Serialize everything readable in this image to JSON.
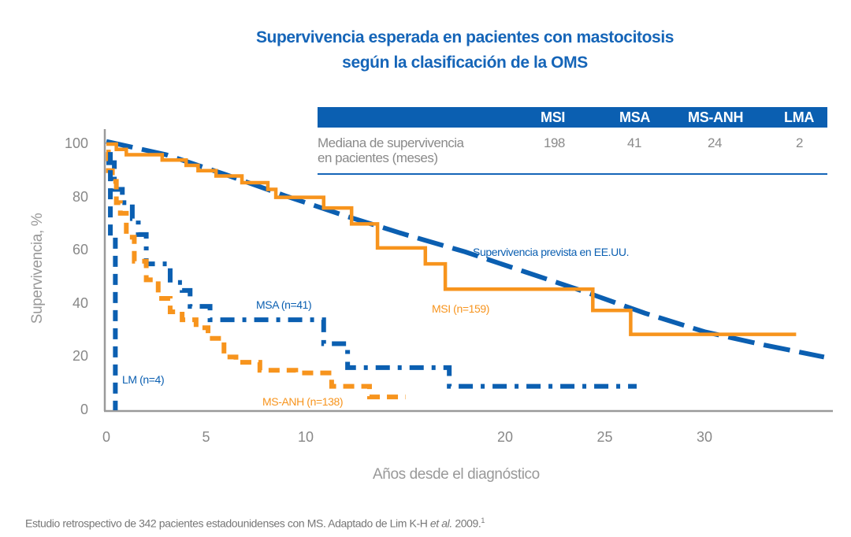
{
  "colors": {
    "blue": "#0b5fb1",
    "orange": "#f7941d",
    "axis": "#9a9a9a"
  },
  "chart_data": {
    "type": "line",
    "title": [
      "Supervivencia esperada en pacientes con mastocitosis",
      "según la clasificación de la OMS"
    ],
    "xlabel": "Años desde el diagnóstico",
    "ylabel": "Supervivencia, %",
    "xlim": [
      0,
      36.5
    ],
    "ylim": [
      0,
      100
    ],
    "xticks": [
      0,
      5,
      10,
      20,
      25,
      30
    ],
    "yticks": [
      0,
      20,
      40,
      60,
      80,
      100
    ],
    "series": [
      {
        "name": "Supervivencia prevista en EE.UU.",
        "color": "#0b5fb1",
        "style": "longdash",
        "step": false,
        "points": [
          [
            0,
            101
          ],
          [
            3,
            96
          ],
          [
            6,
            88.5
          ],
          [
            9,
            80.5
          ],
          [
            12,
            73
          ],
          [
            15,
            66
          ],
          [
            18,
            59.5
          ],
          [
            21,
            52
          ],
          [
            24,
            44.5
          ],
          [
            27,
            36.5
          ],
          [
            30,
            29.5
          ],
          [
            33,
            24.5
          ],
          [
            36,
            20
          ]
        ]
      },
      {
        "name": "MSI (n=159)",
        "color": "#f7941d",
        "style": "solid",
        "step": true,
        "points": [
          [
            0,
            100
          ],
          [
            0.5,
            98
          ],
          [
            1.0,
            96
          ],
          [
            2.8,
            94
          ],
          [
            4,
            92
          ],
          [
            4.6,
            90
          ],
          [
            5.5,
            88
          ],
          [
            6.8,
            85.5
          ],
          [
            8.1,
            83
          ],
          [
            8.5,
            80
          ],
          [
            10.9,
            76
          ],
          [
            12.3,
            70
          ],
          [
            13.6,
            61
          ],
          [
            16,
            55
          ],
          [
            17,
            45.5
          ],
          [
            24.4,
            37.5
          ],
          [
            26.3,
            28.5
          ],
          [
            34.6,
            28.5
          ]
        ]
      },
      {
        "name": "MSA (n=41)",
        "color": "#0b5fb1",
        "style": "dashdot",
        "step": true,
        "points": [
          [
            0,
            93
          ],
          [
            0.4,
            83
          ],
          [
            0.8,
            78
          ],
          [
            1.3,
            72
          ],
          [
            1.6,
            66
          ],
          [
            2.0,
            55
          ],
          [
            3.2,
            48
          ],
          [
            3.8,
            45
          ],
          [
            4.2,
            39
          ],
          [
            5.2,
            34
          ],
          [
            10.9,
            25
          ],
          [
            12.1,
            16
          ],
          [
            17.2,
            9
          ],
          [
            26.6,
            9
          ]
        ]
      },
      {
        "name": "MS-ANH (n=138)",
        "color": "#f7941d",
        "style": "dash",
        "step": true,
        "points": [
          [
            0,
            97
          ],
          [
            0.1,
            90
          ],
          [
            0.3,
            86
          ],
          [
            0.5,
            78
          ],
          [
            0.7,
            74
          ],
          [
            1.0,
            65
          ],
          [
            1.4,
            56
          ],
          [
            2.0,
            49
          ],
          [
            2.6,
            42
          ],
          [
            3.2,
            37
          ],
          [
            3.8,
            34
          ],
          [
            4.5,
            31
          ],
          [
            5.1,
            27
          ],
          [
            5.9,
            20
          ],
          [
            6.5,
            18
          ],
          [
            7.7,
            15
          ],
          [
            9.5,
            14
          ],
          [
            11.3,
            9
          ],
          [
            13.2,
            5
          ],
          [
            15,
            5
          ]
        ]
      },
      {
        "name": "LM (n=4)",
        "color": "#0b5fb1",
        "style": "dash",
        "step": true,
        "points": [
          [
            0.2,
            97
          ],
          [
            0.2,
            65
          ],
          [
            0.45,
            35
          ],
          [
            0.45,
            0
          ]
        ]
      }
    ]
  },
  "table": {
    "headers": [
      "MSI",
      "MSA",
      "MS-ANH",
      "LMA"
    ],
    "row_label_1": "Mediana de supervivencia",
    "row_label_2": "en pacientes (meses)",
    "values": [
      "198",
      "41",
      "24",
      "2"
    ]
  },
  "footer": {
    "text": "Estudio retrospectivo de 342 pacientes estadounidenses con MS. Adaptado de Lim K-H ",
    "italic": "et al.",
    "year": " 2009.",
    "sup": "1"
  }
}
